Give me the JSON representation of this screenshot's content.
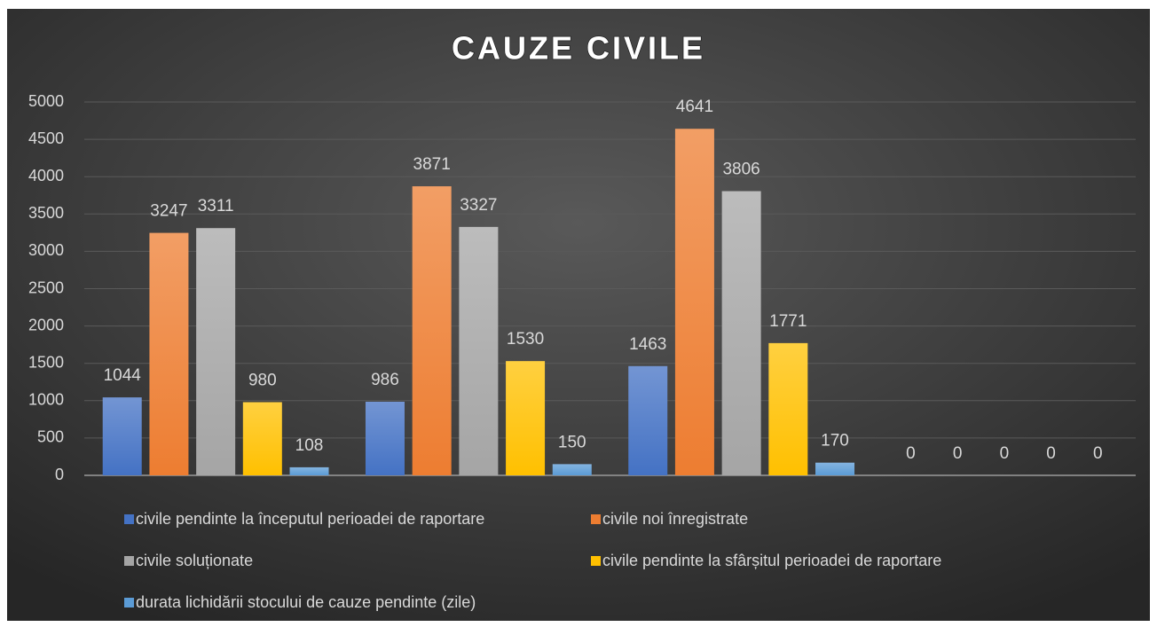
{
  "chart_data": {
    "type": "bar",
    "title": "CAUZE CIVILE",
    "categories": [
      null,
      null,
      null,
      null
    ],
    "series": [
      {
        "name": "civile pendinte la începutul perioadei de raportare",
        "color": "#4472c4",
        "values": [
          1044,
          986,
          1463,
          0
        ]
      },
      {
        "name": "civile noi înregistrate",
        "color": "#ed7d31",
        "values": [
          3247,
          3871,
          4641,
          0
        ]
      },
      {
        "name": "civile soluționate",
        "color": "#a5a5a5",
        "values": [
          3311,
          3327,
          3806,
          0
        ]
      },
      {
        "name": "civile pendinte la sfârșitul perioadei de raportare",
        "color": "#ffc000",
        "values": [
          980,
          1530,
          1771,
          0
        ]
      },
      {
        "name": "durata lichidării stocului de cauze pendinte (zile)",
        "color": "#5b9bd5",
        "values": [
          108,
          150,
          170,
          0
        ]
      }
    ],
    "ylim": [
      0,
      5000
    ],
    "yticks": [
      0,
      500,
      1000,
      1500,
      2000,
      2500,
      3000,
      3500,
      4000,
      4500,
      5000
    ],
    "grid": true,
    "legend": "bottom"
  }
}
